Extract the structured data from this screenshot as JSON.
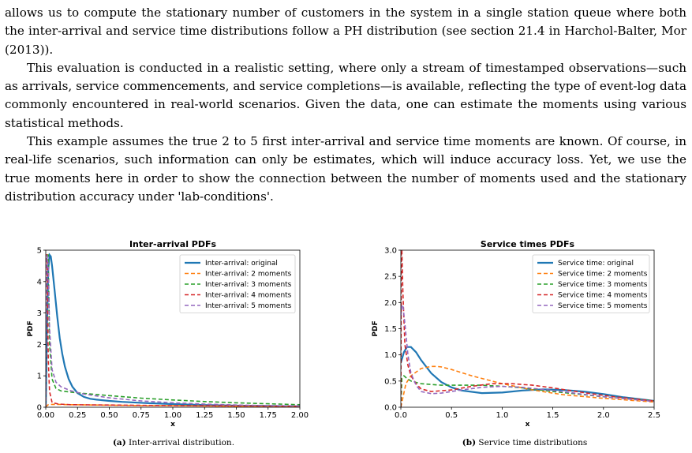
{
  "paragraphs": [
    {
      "indent": false,
      "text": "allows us to compute the stationary number of customers in the system in a single station queue where both the inter-arrival and service time distributions follow a PH distribution (see section 21.4 in Harchol-Balter, Mor (2013))."
    },
    {
      "indent": true,
      "text": "This evaluation is conducted in a realistic setting, where only a stream of timestamped observations—such as arrivals, service commencements, and service completions—is available, reflecting the type of event-log data commonly encountered in real-world scenarios. Given the data, one can estimate the moments using various statistical methods."
    },
    {
      "indent": true,
      "text": "This example assumes the true 2 to 5 first inter-arrival and service time moments are known. Of course, in real-life scenarios, such information can only be estimates, which will induce accuracy loss. Yet, we use the true moments here in order to show the connection between the number of moments used and the stationary distribution accuracy under 'lab-conditions'."
    }
  ],
  "captions": {
    "a": {
      "label": "(a)",
      "text": "Inter-arrival distribution."
    },
    "b": {
      "label": "(b)",
      "text": "Service time distributions"
    }
  },
  "chart_data": [
    {
      "type": "line",
      "title": "Inter-arrival PDFs",
      "xlabel": "x",
      "ylabel": "PDF",
      "xlim": [
        0,
        2.0
      ],
      "ylim": [
        0,
        5
      ],
      "xticks": [
        0.0,
        0.25,
        0.5,
        0.75,
        1.0,
        1.25,
        1.5,
        1.75,
        2.0
      ],
      "xtick_labels": [
        "0.00",
        "0.25",
        "0.50",
        "0.75",
        "1.00",
        "1.25",
        "1.50",
        "1.75",
        "2.00"
      ],
      "yticks": [
        0,
        1,
        2,
        3,
        4,
        5
      ],
      "ytick_labels": [
        "0",
        "1",
        "2",
        "3",
        "4",
        "5"
      ],
      "grid": false,
      "legend": "top-right",
      "series": [
        {
          "name": "Inter-arrival: original",
          "color": "#1f77b4",
          "style": "solid",
          "x": [
            0,
            0.01,
            0.02,
            0.03,
            0.04,
            0.05,
            0.07,
            0.09,
            0.11,
            0.13,
            0.15,
            0.18,
            0.21,
            0.25,
            0.3,
            0.35,
            0.4,
            0.5,
            0.6,
            0.8,
            1.0,
            1.25,
            1.5,
            1.75,
            2.0
          ],
          "y": [
            0.0,
            2.6,
            4.4,
            4.85,
            4.8,
            4.5,
            3.7,
            2.9,
            2.2,
            1.7,
            1.3,
            0.9,
            0.65,
            0.45,
            0.33,
            0.27,
            0.24,
            0.2,
            0.17,
            0.13,
            0.1,
            0.07,
            0.05,
            0.04,
            0.03
          ]
        },
        {
          "name": "Inter-arrival: 2 moments",
          "color": "#ff7f0e",
          "style": "dashed",
          "x": [
            0,
            0.01,
            0.02,
            0.05,
            0.1,
            0.2,
            0.4,
            0.6,
            0.8,
            1.0,
            1.25,
            1.5,
            1.75,
            2.0
          ],
          "y": [
            0.0,
            0.05,
            0.08,
            0.09,
            0.09,
            0.08,
            0.07,
            0.06,
            0.05,
            0.05,
            0.04,
            0.03,
            0.03,
            0.02
          ]
        },
        {
          "name": "Inter-arrival: 3 moments",
          "color": "#2ca02c",
          "style": "dashed",
          "x": [
            0,
            0.005,
            0.01,
            0.02,
            0.03,
            0.05,
            0.08,
            0.12,
            0.2,
            0.3,
            0.5,
            0.75,
            1.0,
            1.25,
            1.5,
            1.75,
            2.0
          ],
          "y": [
            0.0,
            2.2,
            4.85,
            4.85,
            2.0,
            0.9,
            0.6,
            0.52,
            0.48,
            0.44,
            0.37,
            0.29,
            0.23,
            0.18,
            0.14,
            0.11,
            0.08
          ]
        },
        {
          "name": "Inter-arrival: 4 moments",
          "color": "#d62728",
          "style": "dashed",
          "x": [
            0,
            0.003,
            0.006,
            0.01,
            0.015,
            0.02,
            0.03,
            0.05,
            0.1,
            0.2,
            0.5,
            1.0,
            1.5,
            2.0
          ],
          "y": [
            0.0,
            3.5,
            4.85,
            4.85,
            3.0,
            1.5,
            0.5,
            0.15,
            0.1,
            0.08,
            0.07,
            0.05,
            0.04,
            0.03
          ]
        },
        {
          "name": "Inter-arrival: 5 moments",
          "color": "#9467bd",
          "style": "dashed",
          "x": [
            0,
            0.005,
            0.01,
            0.02,
            0.03,
            0.05,
            0.08,
            0.12,
            0.2,
            0.3,
            0.5,
            0.75,
            1.0,
            1.25,
            1.5,
            1.75,
            2.0
          ],
          "y": [
            0.0,
            3.0,
            4.85,
            4.5,
            2.5,
            1.2,
            0.8,
            0.65,
            0.52,
            0.42,
            0.3,
            0.2,
            0.14,
            0.1,
            0.07,
            0.05,
            0.04
          ]
        }
      ]
    },
    {
      "type": "line",
      "title": "Service times PDFs",
      "xlabel": "x",
      "ylabel": "PDF",
      "xlim": [
        0,
        2.5
      ],
      "ylim": [
        0,
        3.0
      ],
      "xticks": [
        0.0,
        0.5,
        1.0,
        1.5,
        2.0,
        2.5
      ],
      "xtick_labels": [
        "0.0",
        "0.5",
        "1.0",
        "1.5",
        "2.0",
        "2.5"
      ],
      "yticks": [
        0.0,
        0.5,
        1.0,
        1.5,
        2.0,
        2.5,
        3.0
      ],
      "ytick_labels": [
        "0.0",
        "0.5",
        "1.0",
        "1.5",
        "2.0",
        "2.5",
        "3.0"
      ],
      "grid": false,
      "legend": "top-right",
      "series": [
        {
          "name": "Service time: original",
          "color": "#1f77b4",
          "style": "solid",
          "x": [
            0,
            0.03,
            0.06,
            0.1,
            0.15,
            0.2,
            0.3,
            0.4,
            0.5,
            0.6,
            0.8,
            1.0,
            1.2,
            1.4,
            1.6,
            1.8,
            2.0,
            2.2,
            2.5
          ],
          "y": [
            0.85,
            1.05,
            1.15,
            1.15,
            1.05,
            0.9,
            0.65,
            0.48,
            0.38,
            0.32,
            0.27,
            0.28,
            0.32,
            0.34,
            0.33,
            0.3,
            0.25,
            0.19,
            0.12
          ]
        },
        {
          "name": "Service time: 2 moments",
          "color": "#ff7f0e",
          "style": "dashed",
          "x": [
            0,
            0.05,
            0.1,
            0.2,
            0.3,
            0.35,
            0.4,
            0.5,
            0.7,
            1.0,
            1.3,
            1.6,
            2.0,
            2.5
          ],
          "y": [
            0.0,
            0.45,
            0.6,
            0.74,
            0.78,
            0.78,
            0.77,
            0.72,
            0.6,
            0.45,
            0.33,
            0.24,
            0.17,
            0.1
          ]
        },
        {
          "name": "Service time: 3 moments",
          "color": "#2ca02c",
          "style": "dashed",
          "x": [
            0,
            0.01,
            0.03,
            0.06,
            0.1,
            0.2,
            0.4,
            0.6,
            0.8,
            1.0,
            1.2,
            1.5,
            2.0,
            2.5
          ],
          "y": [
            0.0,
            0.55,
            0.6,
            0.55,
            0.5,
            0.45,
            0.42,
            0.42,
            0.42,
            0.4,
            0.37,
            0.3,
            0.2,
            0.12
          ]
        },
        {
          "name": "Service time: 4 moments",
          "color": "#d62728",
          "style": "dashed",
          "x": [
            0,
            0.005,
            0.01,
            0.02,
            0.04,
            0.07,
            0.1,
            0.15,
            0.2,
            0.3,
            0.5,
            0.7,
            0.9,
            1.1,
            1.3,
            1.5,
            1.8,
            2.1,
            2.5
          ],
          "y": [
            0.0,
            3.0,
            3.0,
            2.2,
            1.2,
            0.8,
            0.6,
            0.45,
            0.35,
            0.3,
            0.33,
            0.4,
            0.45,
            0.45,
            0.42,
            0.37,
            0.28,
            0.2,
            0.12
          ]
        },
        {
          "name": "Service time: 5 moments",
          "color": "#9467bd",
          "style": "dashed",
          "x": [
            0,
            0.01,
            0.02,
            0.04,
            0.07,
            0.1,
            0.15,
            0.2,
            0.3,
            0.4,
            0.6,
            0.8,
            1.0,
            1.2,
            1.5,
            2.0,
            2.5
          ],
          "y": [
            1.75,
            1.95,
            1.95,
            1.6,
            1.0,
            0.65,
            0.42,
            0.3,
            0.26,
            0.27,
            0.33,
            0.38,
            0.4,
            0.38,
            0.32,
            0.2,
            0.11
          ]
        }
      ]
    }
  ]
}
